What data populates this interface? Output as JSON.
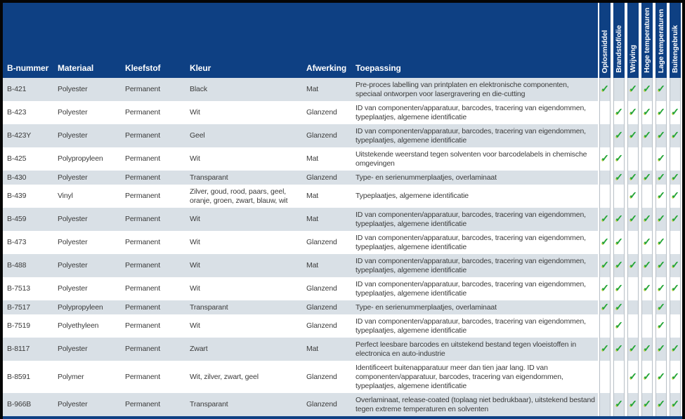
{
  "colors": {
    "navy": "#0e4083",
    "row_shade": "#d9e0e6",
    "row_white": "#ffffff",
    "check_green": "#1fa43c",
    "check_shadow": "#c9d44f",
    "separator_gray": "#b8bfc6",
    "frame_black": "#050505",
    "header_text": "#ffffff",
    "body_text": "#3b3b3b"
  },
  "icons": {
    "check": "✓"
  },
  "chart_data": {
    "type": "table",
    "title": "",
    "text_columns": [
      "B-nummer",
      "Materiaal",
      "Kleefstof",
      "Kleur",
      "Afwerking",
      "Toepassing"
    ],
    "check_columns": [
      "Oplosmiddel",
      "Brandstof/olie",
      "Wrijving",
      "Hoge temperaturen",
      "Lage temperaturen",
      "Buitengebruik"
    ],
    "rows": [
      {
        "b_nummer": "B-421",
        "materiaal": "Polyester",
        "kleefstof": "Permanent",
        "kleur": "Black",
        "afwerking": "Mat",
        "toepassing": "Pre-proces labelling van printplaten en elektronische componenten, speciaal ontworpen voor lasergravering en die-cutting",
        "checks": [
          1,
          0,
          1,
          1,
          1,
          0
        ]
      },
      {
        "b_nummer": "B-423",
        "materiaal": "Polyester",
        "kleefstof": "Permanent",
        "kleur": "Wit",
        "afwerking": "Glanzend",
        "toepassing": "ID van componenten/apparatuur, barcodes, tracering van eigendommen, typeplaatjes, algemene identificatie",
        "checks": [
          0,
          1,
          1,
          1,
          1,
          1
        ]
      },
      {
        "b_nummer": "B-423Y",
        "materiaal": "Polyester",
        "kleefstof": "Permanent",
        "kleur": "Geel",
        "afwerking": "Glanzend",
        "toepassing": "ID van componenten/apparatuur, barcodes, tracering van eigendommen, typeplaatjes, algemene identificatie",
        "checks": [
          0,
          1,
          1,
          1,
          1,
          1
        ]
      },
      {
        "b_nummer": "B-425",
        "materiaal": "Polypropyleen",
        "kleefstof": "Permanent",
        "kleur": "Wit",
        "afwerking": "Mat",
        "toepassing": "Uitstekende weerstand tegen solventen voor barcodelabels in chemische omgevingen",
        "checks": [
          1,
          1,
          0,
          0,
          1,
          0
        ]
      },
      {
        "b_nummer": "B-430",
        "materiaal": "Polyester",
        "kleefstof": "Permanent",
        "kleur": "Transparant",
        "afwerking": "Glanzend",
        "toepassing": "Type- en serienummerplaatjes, overlaminaat",
        "checks": [
          0,
          1,
          1,
          1,
          1,
          1
        ]
      },
      {
        "b_nummer": "B-439",
        "materiaal": "Vinyl",
        "kleefstof": "Permanent",
        "kleur": "Zilver, goud, rood, paars, geel, oranje, groen, zwart, blauw, wit",
        "afwerking": "Mat",
        "toepassing": "Typeplaatjes, algemene identificatie",
        "checks": [
          0,
          0,
          1,
          0,
          1,
          1
        ]
      },
      {
        "b_nummer": "B-459",
        "materiaal": "Polyester",
        "kleefstof": "Permanent",
        "kleur": "Wit",
        "afwerking": "Mat",
        "toepassing": "ID van componenten/apparatuur, barcodes, tracering van eigendommen, typeplaatjes, algemene identificatie",
        "checks": [
          1,
          1,
          1,
          1,
          1,
          1
        ]
      },
      {
        "b_nummer": "B-473",
        "materiaal": "Polyester",
        "kleefstof": "Permanent",
        "kleur": "Wit",
        "afwerking": "Glanzend",
        "toepassing": "ID van componenten/apparatuur, barcodes, tracering van eigendommen, typeplaatjes, algemene identificatie",
        "checks": [
          1,
          1,
          0,
          1,
          1,
          0
        ]
      },
      {
        "b_nummer": "B-488",
        "materiaal": "Polyester",
        "kleefstof": "Permanent",
        "kleur": "Wit",
        "afwerking": "Mat",
        "toepassing": "ID van componenten/apparatuur, barcodes, tracering van eigendommen, typeplaatjes, algemene identificatie",
        "checks": [
          1,
          1,
          1,
          1,
          1,
          1
        ]
      },
      {
        "b_nummer": "B-7513",
        "materiaal": "Polyester",
        "kleefstof": "Permanent",
        "kleur": "Wit",
        "afwerking": "Glanzend",
        "toepassing": "ID van componenten/apparatuur, barcodes, tracering van eigendommen, typeplaatjes, algemene identificatie",
        "checks": [
          1,
          1,
          0,
          1,
          1,
          1
        ]
      },
      {
        "b_nummer": "B-7517",
        "materiaal": "Polypropyleen",
        "kleefstof": "Permanent",
        "kleur": "Transparant",
        "afwerking": "Glanzend",
        "toepassing": "Type- en serienummerplaatjes, overlaminaat",
        "checks": [
          1,
          1,
          0,
          0,
          1,
          0
        ]
      },
      {
        "b_nummer": "B-7519",
        "materiaal": "Polyethyleen",
        "kleefstof": "Permanent",
        "kleur": "Wit",
        "afwerking": "Glanzend",
        "toepassing": "ID van componenten/apparatuur, barcodes, tracering van eigendommen, typeplaatjes, algemene identificatie",
        "checks": [
          0,
          1,
          0,
          0,
          1,
          0
        ]
      },
      {
        "b_nummer": "B-8117",
        "materiaal": "Polyester",
        "kleefstof": "Permanent",
        "kleur": "Zwart",
        "afwerking": "Mat",
        "toepassing": "Perfect leesbare barcodes en uitstekend bestand tegen vloeistoffen in electronica en auto-industrie",
        "checks": [
          1,
          1,
          1,
          1,
          1,
          1
        ]
      },
      {
        "b_nummer": "B-8591",
        "materiaal": "Polymer",
        "kleefstof": "Permanent",
        "kleur": "Wit, zilver, zwart, geel",
        "afwerking": "Glanzend",
        "toepassing": "Identificeert buitenapparatuur meer dan tien jaar lang. ID van componenten/apparatuur, barcodes, tracering van eigendommen, typeplaatjes, algemene identificatie",
        "checks": [
          0,
          0,
          1,
          1,
          1,
          1
        ]
      },
      {
        "b_nummer": "B-966B",
        "materiaal": "Polyester",
        "kleefstof": "Permanent",
        "kleur": "Transparant",
        "afwerking": "Glanzend",
        "toepassing": "Overlaminaat, release-coated (toplaag niet bedrukbaar), uitstekend bestand tegen extreme temperaturen en solventen",
        "checks": [
          0,
          1,
          1,
          1,
          1,
          1
        ]
      }
    ]
  }
}
